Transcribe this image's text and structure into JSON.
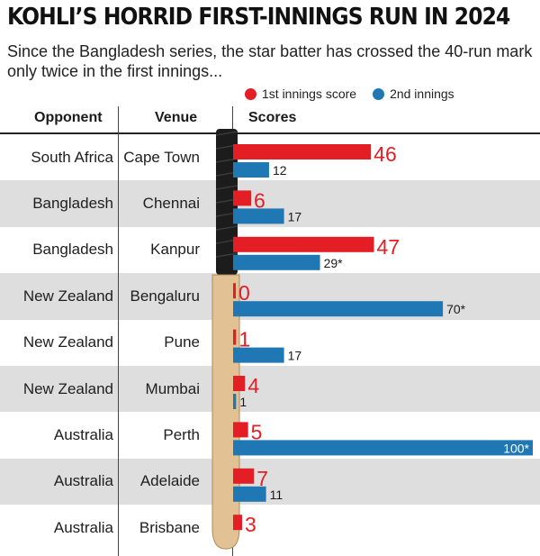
{
  "header": {
    "title": "KOHLI’S HORRID FIRST-INNINGS RUN IN 2024",
    "subtitle": "Since the Bangladesh series, the star batter has crossed the 40-run mark only twice in the first innings..."
  },
  "legend": {
    "first": "1st innings score",
    "second": "2nd innings"
  },
  "columns": {
    "opponent": "Opponent",
    "venue": "Venue",
    "scores": "Scores"
  },
  "colors": {
    "first": "#e31e24",
    "second": "#1f78b4",
    "shade": "#dedede",
    "bat_handle": "#1c1c1c",
    "bat_blade": "#e2c194"
  },
  "chart_data": {
    "type": "bar",
    "orientation": "horizontal",
    "title": "KOHLI’S HORRID FIRST-INNINGS RUN IN 2024",
    "subtitle": "Since the Bangladesh series, the star batter has crossed the 40-run mark only twice in the first innings...",
    "xlim": [
      0,
      100
    ],
    "grid": false,
    "legend_position": "top-right",
    "rows": [
      {
        "opponent": "South Africa",
        "venue": "Cape Town",
        "first": 46,
        "first_label": "46",
        "second": 12,
        "second_label": "12"
      },
      {
        "opponent": "Bangladesh",
        "venue": "Chennai",
        "first": 6,
        "first_label": "6",
        "second": 17,
        "second_label": "17"
      },
      {
        "opponent": "Bangladesh",
        "venue": "Kanpur",
        "first": 47,
        "first_label": "47",
        "second": 29,
        "second_label": "29*"
      },
      {
        "opponent": "New Zealand",
        "venue": "Bengaluru",
        "first": 0,
        "first_label": "0",
        "second": 70,
        "second_label": "70*"
      },
      {
        "opponent": "New Zealand",
        "venue": "Pune",
        "first": 1,
        "first_label": "1",
        "second": 17,
        "second_label": "17"
      },
      {
        "opponent": "New Zealand",
        "venue": "Mumbai",
        "first": 4,
        "first_label": "4",
        "second": 1,
        "second_label": "1"
      },
      {
        "opponent": "Australia",
        "venue": "Perth",
        "first": 5,
        "first_label": "5",
        "second": 100,
        "second_label": "100*"
      },
      {
        "opponent": "Australia",
        "venue": "Adelaide",
        "first": 7,
        "first_label": "7",
        "second": 11,
        "second_label": "11"
      },
      {
        "opponent": "Australia",
        "venue": "Brisbane",
        "first": 3,
        "first_label": "3",
        "second": null,
        "second_label": ""
      }
    ],
    "series": [
      {
        "name": "1st innings score",
        "values": [
          46,
          6,
          47,
          0,
          1,
          4,
          5,
          7,
          3
        ]
      },
      {
        "name": "2nd innings",
        "values": [
          12,
          17,
          29,
          70,
          17,
          1,
          100,
          11,
          null
        ]
      }
    ]
  }
}
